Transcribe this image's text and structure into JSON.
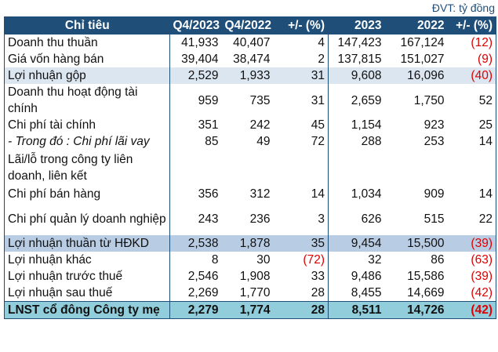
{
  "unit_label": "ĐVT: tỷ đồng",
  "colors": {
    "header": "#1f4e79",
    "highlight_light": "#dce6f1",
    "highlight_mid": "#b8cce4",
    "total": "#92cddc",
    "negative": "#e00000"
  },
  "headers": [
    "Chỉ tiêu",
    "Q4/2023",
    "Q4/2022",
    "+/- (%)",
    "2023",
    "2022",
    "+/- (%)"
  ],
  "rows": [
    {
      "label": "Doanh thu thuần",
      "q4_2023": "41,933",
      "q4_2022": "40,407",
      "q_chg": "4",
      "y2023": "147,423",
      "y2022": "167,124",
      "y_chg": "(12)"
    },
    {
      "label": "Giá vốn hàng bán",
      "q4_2023": "39,404",
      "q4_2022": "38,474",
      "q_chg": "2",
      "y2023": "137,815",
      "y2022": "151,027",
      "y_chg": "(9)"
    },
    {
      "label": "Lợi nhuận gộp",
      "q4_2023": "2,529",
      "q4_2022": "1,933",
      "q_chg": "31",
      "y2023": "9,608",
      "y2022": "16,096",
      "y_chg": "(40)"
    },
    {
      "label": "Doanh thu hoạt động tài chính",
      "q4_2023": "959",
      "q4_2022": "735",
      "q_chg": "31",
      "y2023": "2,659",
      "y2022": "1,750",
      "y_chg": "52"
    },
    {
      "label": "Chi phí tài chính",
      "q4_2023": "351",
      "q4_2022": "242",
      "q_chg": "45",
      "y2023": "1,154",
      "y2022": "923",
      "y_chg": "25"
    },
    {
      "label": "- Trong đó : Chi phí lãi vay",
      "q4_2023": "85",
      "q4_2022": "49",
      "q_chg": "72",
      "y2023": "288",
      "y2022": "253",
      "y_chg": "14"
    },
    {
      "label": "Lãi/lỗ trong công ty liên doanh, liên kết",
      "q4_2023": "",
      "q4_2022": "",
      "q_chg": "",
      "y2023": "",
      "y2022": "",
      "y_chg": ""
    },
    {
      "label": "Chi phí bán hàng",
      "q4_2023": "356",
      "q4_2022": "312",
      "q_chg": "14",
      "y2023": "1,034",
      "y2022": "909",
      "y_chg": "14"
    },
    {
      "label": "Chi phí quản lý doanh nghiệp",
      "q4_2023": "243",
      "q4_2022": "236",
      "q_chg": "3",
      "y2023": "626",
      "y2022": "515",
      "y_chg": "22"
    },
    {
      "label": "Lợi nhuận thuần từ HĐKD",
      "q4_2023": "2,538",
      "q4_2022": "1,878",
      "q_chg": "35",
      "y2023": "9,454",
      "y2022": "15,500",
      "y_chg": "(39)"
    },
    {
      "label": "Lợi nhuận khác",
      "q4_2023": "8",
      "q4_2022": "30",
      "q_chg": "(72)",
      "y2023": "32",
      "y2022": "86",
      "y_chg": "(63)"
    },
    {
      "label": "Lợi nhuận trước thuế",
      "q4_2023": "2,546",
      "q4_2022": "1,908",
      "q_chg": "33",
      "y2023": "9,486",
      "y2022": "15,586",
      "y_chg": "(39)"
    },
    {
      "label": "Lợi nhuận sau thuế",
      "q4_2023": "2,269",
      "q4_2022": "1,770",
      "q_chg": "28",
      "y2023": "8,455",
      "y2022": "14,669",
      "y_chg": "(42)"
    },
    {
      "label": "LNST cổ đông Công ty mẹ",
      "q4_2023": "2,279",
      "q4_2022": "1,774",
      "q_chg": "28",
      "y2023": "8,511",
      "y2022": "14,726",
      "y_chg": "(42)"
    }
  ]
}
